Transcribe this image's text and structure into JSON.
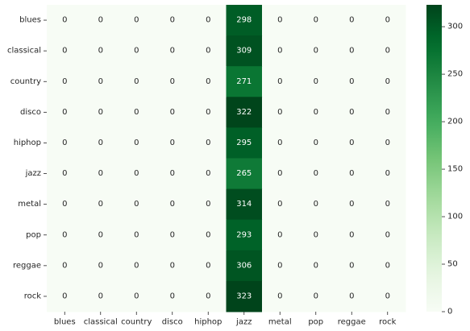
{
  "chart_data": {
    "type": "heatmap",
    "title": "",
    "xlabel": "",
    "ylabel": "",
    "x_labels": [
      "blues",
      "classical",
      "country",
      "disco",
      "hiphop",
      "jazz",
      "metal",
      "pop",
      "reggae",
      "rock"
    ],
    "y_labels": [
      "blues",
      "classical",
      "country",
      "disco",
      "hiphop",
      "jazz",
      "metal",
      "pop",
      "reggae",
      "rock"
    ],
    "values": [
      [
        0,
        0,
        0,
        0,
        0,
        298,
        0,
        0,
        0,
        0
      ],
      [
        0,
        0,
        0,
        0,
        0,
        309,
        0,
        0,
        0,
        0
      ],
      [
        0,
        0,
        0,
        0,
        0,
        271,
        0,
        0,
        0,
        0
      ],
      [
        0,
        0,
        0,
        0,
        0,
        322,
        0,
        0,
        0,
        0
      ],
      [
        0,
        0,
        0,
        0,
        0,
        295,
        0,
        0,
        0,
        0
      ],
      [
        0,
        0,
        0,
        0,
        0,
        265,
        0,
        0,
        0,
        0
      ],
      [
        0,
        0,
        0,
        0,
        0,
        314,
        0,
        0,
        0,
        0
      ],
      [
        0,
        0,
        0,
        0,
        0,
        293,
        0,
        0,
        0,
        0
      ],
      [
        0,
        0,
        0,
        0,
        0,
        306,
        0,
        0,
        0,
        0
      ],
      [
        0,
        0,
        0,
        0,
        0,
        323,
        0,
        0,
        0,
        0
      ]
    ],
    "colormap": "Greens",
    "color_min": 0,
    "color_max": 323,
    "colorbar_ticks": [
      0,
      50,
      100,
      150,
      200,
      250,
      300
    ],
    "low_color": "#f7fcf5",
    "high_color": "#00441b",
    "text_color_dark": "#262626",
    "text_color_light": "#ffffff",
    "grid": false,
    "legend": "colorbar-right"
  }
}
